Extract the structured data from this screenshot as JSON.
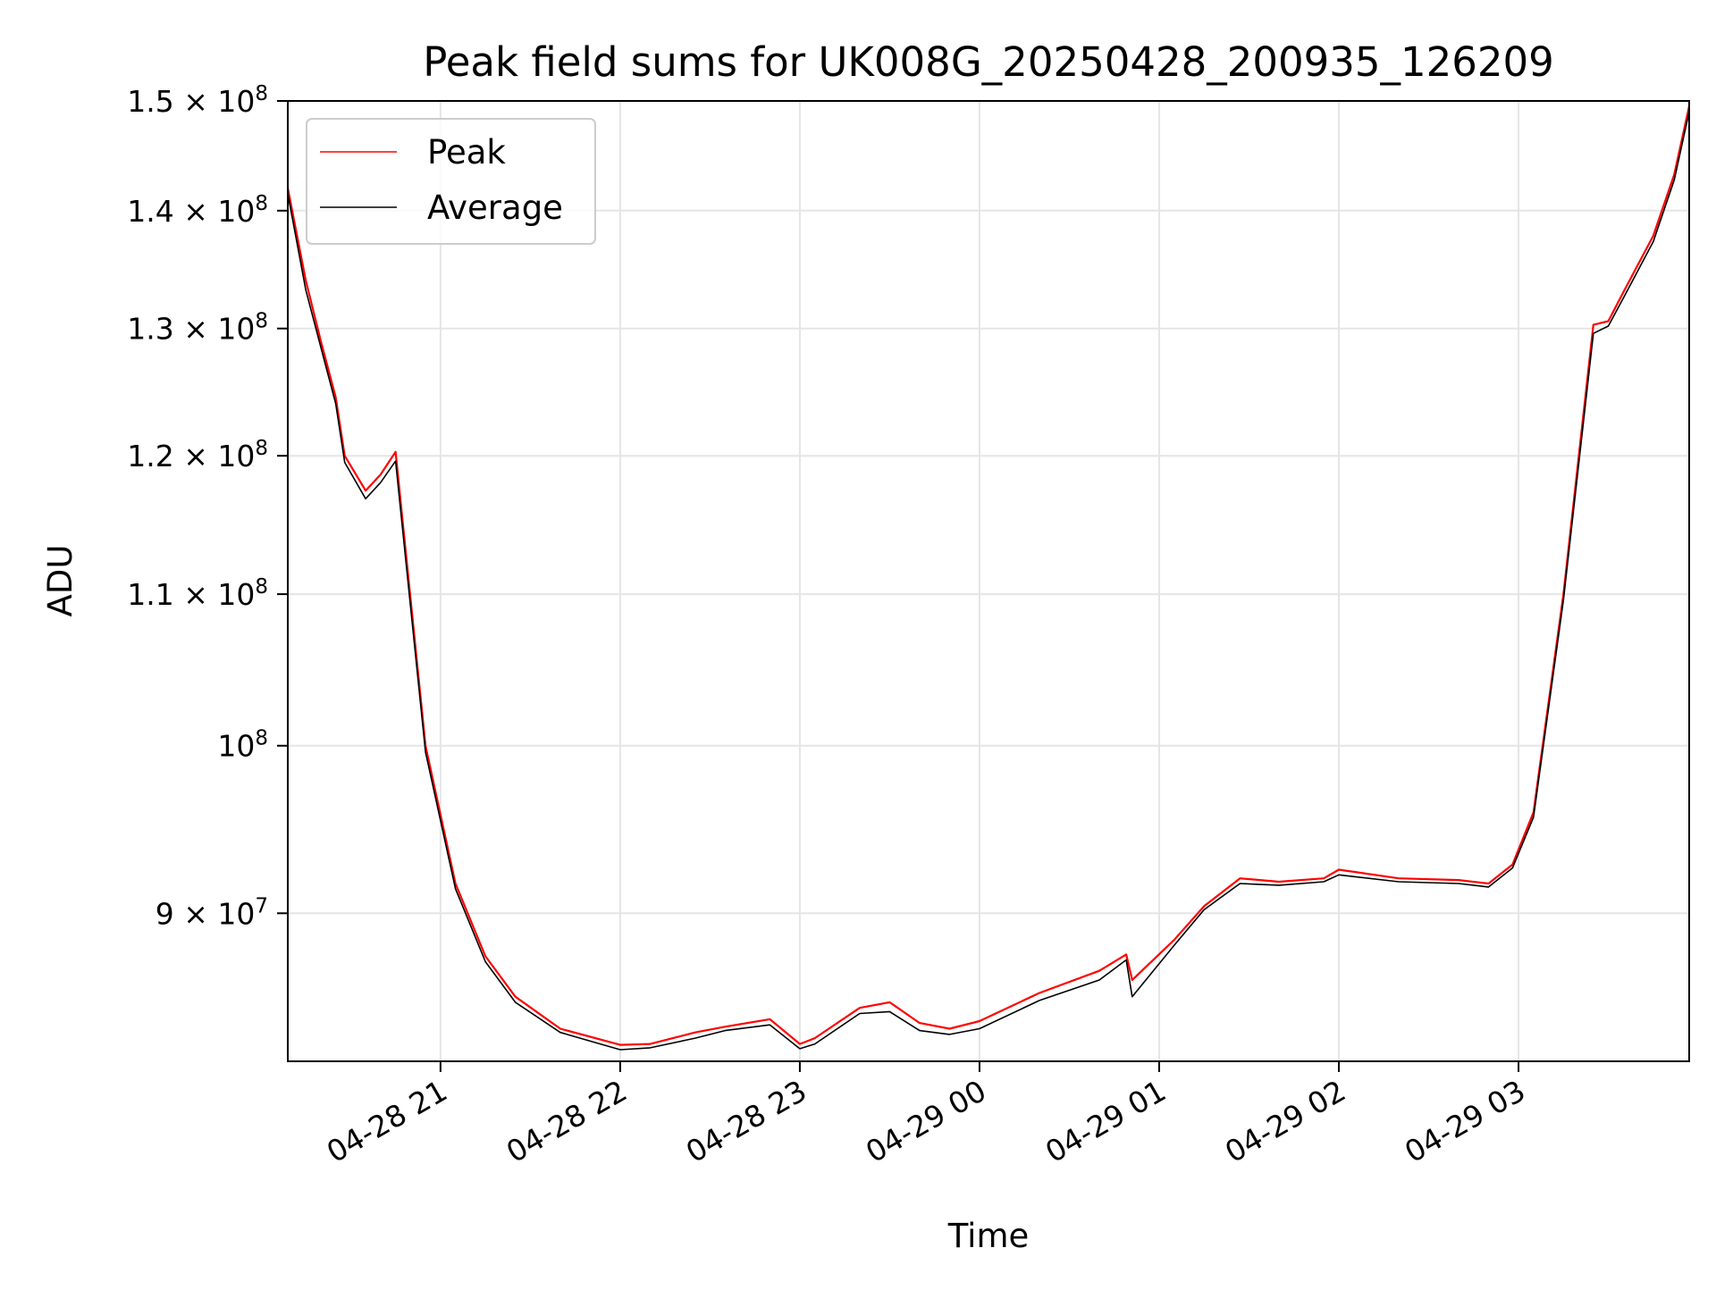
{
  "chart_data": {
    "type": "line",
    "title": "Peak field sums for UK008G_20250428_200935_126209",
    "xlabel": "Time",
    "ylabel": "ADU",
    "yscale": "log",
    "ylim": [
      82000000,
      150000000
    ],
    "xlim": [
      "2025-04-28 20:09",
      "2025-04-29 03:57"
    ],
    "grid": true,
    "legend_position": "top-left",
    "x_ticks": [
      {
        "x": "2025-04-28 21:00",
        "label": "04-28 21"
      },
      {
        "x": "2025-04-28 22:00",
        "label": "04-28 22"
      },
      {
        "x": "2025-04-28 23:00",
        "label": "04-28 23"
      },
      {
        "x": "2025-04-29 00:00",
        "label": "04-29 00"
      },
      {
        "x": "2025-04-29 01:00",
        "label": "04-29 01"
      },
      {
        "x": "2025-04-29 02:00",
        "label": "04-29 02"
      },
      {
        "x": "2025-04-29 03:00",
        "label": "04-29 03"
      }
    ],
    "y_ticks": [
      {
        "y": 90000000,
        "mantissa": "9 × 10",
        "exponent": "7"
      },
      {
        "y": 100000000,
        "mantissa": "10",
        "exponent": "8"
      },
      {
        "y": 110000000,
        "mantissa": "1.1 × 10",
        "exponent": "8"
      },
      {
        "y": 120000000,
        "mantissa": "1.2 × 10",
        "exponent": "8"
      },
      {
        "y": 130000000,
        "mantissa": "1.3 × 10",
        "exponent": "8"
      },
      {
        "y": 140000000,
        "mantissa": "1.4 × 10",
        "exponent": "8"
      },
      {
        "y": 150000000,
        "mantissa": "1.5 × 10",
        "exponent": "8"
      }
    ],
    "series": [
      {
        "name": "Peak",
        "color": "#ff0000",
        "x": [
          "2025-04-28 20:09",
          "2025-04-28 20:15",
          "2025-04-28 20:20",
          "2025-04-28 20:25",
          "2025-04-28 20:28",
          "2025-04-28 20:35",
          "2025-04-28 20:40",
          "2025-04-28 20:45",
          "2025-04-28 20:55",
          "2025-04-28 21:05",
          "2025-04-28 21:15",
          "2025-04-28 21:25",
          "2025-04-28 21:40",
          "2025-04-28 22:00",
          "2025-04-28 22:10",
          "2025-04-28 22:25",
          "2025-04-28 22:35",
          "2025-04-28 22:50",
          "2025-04-28 23:00",
          "2025-04-28 23:05",
          "2025-04-28 23:20",
          "2025-04-28 23:30",
          "2025-04-28 23:40",
          "2025-04-28 23:50",
          "2025-04-29 00:00",
          "2025-04-29 00:20",
          "2025-04-29 00:40",
          "2025-04-29 00:49",
          "2025-04-29 00:51",
          "2025-04-29 01:05",
          "2025-04-29 01:15",
          "2025-04-29 01:27",
          "2025-04-29 01:40",
          "2025-04-29 01:55",
          "2025-04-29 02:00",
          "2025-04-29 02:20",
          "2025-04-29 02:40",
          "2025-04-29 02:50",
          "2025-04-29 02:58",
          "2025-04-29 03:05",
          "2025-04-29 03:15",
          "2025-04-29 03:25",
          "2025-04-29 03:30",
          "2025-04-29 03:35",
          "2025-04-29 03:45",
          "2025-04-29 03:52",
          "2025-04-29 03:57"
        ],
        "values": [
          142000000,
          134000000,
          129000000,
          124500000,
          120000000,
          117400000,
          118600000,
          120300000,
          100000000,
          91700000,
          87600000,
          85400000,
          83700000,
          82850000,
          82900000,
          83500000,
          83800000,
          84200000,
          82900000,
          83200000,
          84800000,
          85100000,
          84000000,
          83700000,
          84100000,
          85600000,
          86800000,
          87700000,
          86300000,
          88500000,
          90400000,
          92000000,
          91800000,
          92000000,
          92500000,
          92000000,
          91900000,
          91700000,
          92800000,
          95900000,
          110000000,
          130300000,
          130600000,
          133000000,
          137800000,
          143200000,
          149500000
        ]
      },
      {
        "name": "Average",
        "color": "#000000",
        "x": [
          "2025-04-28 20:09",
          "2025-04-28 20:15",
          "2025-04-28 20:20",
          "2025-04-28 20:25",
          "2025-04-28 20:28",
          "2025-04-28 20:35",
          "2025-04-28 20:40",
          "2025-04-28 20:45",
          "2025-04-28 20:55",
          "2025-04-28 21:05",
          "2025-04-28 21:15",
          "2025-04-28 21:25",
          "2025-04-28 21:40",
          "2025-04-28 22:00",
          "2025-04-28 22:10",
          "2025-04-28 22:25",
          "2025-04-28 22:35",
          "2025-04-28 22:50",
          "2025-04-28 23:00",
          "2025-04-28 23:05",
          "2025-04-28 23:20",
          "2025-04-28 23:30",
          "2025-04-28 23:40",
          "2025-04-28 23:50",
          "2025-04-29 00:00",
          "2025-04-29 00:20",
          "2025-04-29 00:40",
          "2025-04-29 00:49",
          "2025-04-29 00:51",
          "2025-04-29 01:05",
          "2025-04-29 01:15",
          "2025-04-29 01:27",
          "2025-04-29 01:40",
          "2025-04-29 01:55",
          "2025-04-29 02:00",
          "2025-04-29 02:20",
          "2025-04-29 02:40",
          "2025-04-29 02:50",
          "2025-04-29 02:58",
          "2025-04-29 03:05",
          "2025-04-29 03:15",
          "2025-04-29 03:25",
          "2025-04-29 03:30",
          "2025-04-29 03:35",
          "2025-04-29 03:45",
          "2025-04-29 03:52",
          "2025-04-29 03:57"
        ],
        "values": [
          141500000,
          133200000,
          128500000,
          124000000,
          119500000,
          116800000,
          118000000,
          119600000,
          99600000,
          91400000,
          87300000,
          85100000,
          83500000,
          82600000,
          82700000,
          83200000,
          83600000,
          83900000,
          82650000,
          82900000,
          84500000,
          84600000,
          83600000,
          83400000,
          83700000,
          85200000,
          86300000,
          87400000,
          85400000,
          88200000,
          90200000,
          91700000,
          91600000,
          91800000,
          92200000,
          91800000,
          91700000,
          91500000,
          92600000,
          95600000,
          109600000,
          129600000,
          130200000,
          132500000,
          137300000,
          142700000,
          149000000
        ]
      }
    ]
  }
}
